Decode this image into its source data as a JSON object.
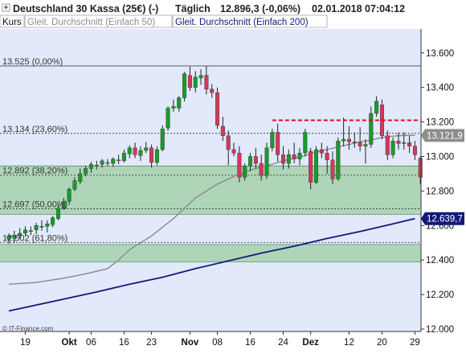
{
  "header": {
    "instrument": "Deutschland 30 Kassa (25€) (-)",
    "interval": "Täglich",
    "quote": "12.896,3 (-0,06%)",
    "datetime": "02.01.2018 07:04:12"
  },
  "legend": {
    "kurs": "Kurs",
    "sma50": "Gleit. Durchschnitt (Einfach 50)",
    "sma200": "Gleit. Durchschnitt (Einfach 200)"
  },
  "watermark": "© IT-Finance.com",
  "colors": {
    "background": "#e1e9fb",
    "header_background": "#ffffff",
    "candle_up": "#1a9a2a",
    "candle_down": "#d2385a",
    "sma50": "#8e8e8e",
    "sma200": "#141a7a",
    "fib_band": "#a6d1ac",
    "resistance": "#dd1111",
    "label_sma50": "#8e8e8e",
    "label_sma200": "#141a7a"
  },
  "chart_data": {
    "type": "candlestick",
    "title": "Deutschland 30 Kassa (25€) (-)",
    "ylim": [
      12000,
      13700
    ],
    "y_ticks": [
      12000,
      12200,
      12400,
      12600,
      12800,
      13000,
      13200,
      13400,
      13600
    ],
    "y_tick_labels": [
      "12.000",
      "12.200",
      "12.400",
      "12.600",
      "12.800",
      "13.000",
      "13.200",
      "13.400",
      "13.600"
    ],
    "x_ticks": [
      {
        "label": "19",
        "index": 3,
        "bold": false
      },
      {
        "label": "Okt",
        "index": 11,
        "bold": true
      },
      {
        "label": "06",
        "index": 15,
        "bold": false
      },
      {
        "label": "16",
        "index": 21,
        "bold": false
      },
      {
        "label": "23",
        "index": 26,
        "bold": false
      },
      {
        "label": "Nov",
        "index": 33,
        "bold": true
      },
      {
        "label": "08",
        "index": 38,
        "bold": false
      },
      {
        "label": "16",
        "index": 44,
        "bold": false
      },
      {
        "label": "24",
        "index": 50,
        "bold": false
      },
      {
        "label": "Dez",
        "index": 55,
        "bold": true
      },
      {
        "label": "12",
        "index": 62,
        "bold": false
      },
      {
        "label": "20",
        "index": 68,
        "bold": false
      },
      {
        "label": "29",
        "index": 74,
        "bold": false
      }
    ],
    "fibonacci": [
      {
        "label": "13.525 (0,00%)",
        "value": 13525
      },
      {
        "label": "13.134 (23,60%)",
        "value": 13134
      },
      {
        "label": "12.892 (38,20%)",
        "value": 12892
      },
      {
        "label": "12.697 (50,00%)",
        "value": 12697
      },
      {
        "label": "12.502 (61,80%)",
        "value": 12502
      }
    ],
    "zones": [
      {
        "from": 12665,
        "to": 12945
      },
      {
        "from": 12390,
        "to": 12490
      }
    ],
    "resistance": {
      "value": 13210,
      "from_index": 48,
      "to_index": 75
    },
    "last_values": {
      "sma50": "13.121,9",
      "sma200": "12.639,7"
    },
    "series": [
      {
        "name": "Kurs",
        "ohlc": [
          [
            12520,
            12555,
            12495,
            12540
          ],
          [
            12525,
            12570,
            12500,
            12545
          ],
          [
            12540,
            12585,
            12525,
            12555
          ],
          [
            12555,
            12595,
            12540,
            12575
          ],
          [
            12565,
            12595,
            12545,
            12570
          ],
          [
            12575,
            12615,
            12550,
            12600
          ],
          [
            12590,
            12630,
            12570,
            12595
          ],
          [
            12595,
            12630,
            12560,
            12610
          ],
          [
            12605,
            12655,
            12590,
            12645
          ],
          [
            12640,
            12720,
            12630,
            12700
          ],
          [
            12700,
            12760,
            12690,
            12740
          ],
          [
            12740,
            12820,
            12720,
            12810
          ],
          [
            12810,
            12880,
            12800,
            12860
          ],
          [
            12855,
            12930,
            12840,
            12900
          ],
          [
            12900,
            12945,
            12885,
            12930
          ],
          [
            12930,
            12970,
            12905,
            12955
          ],
          [
            12945,
            12975,
            12925,
            12950
          ],
          [
            12955,
            12985,
            12935,
            12975
          ],
          [
            12965,
            12985,
            12945,
            12960
          ],
          [
            12960,
            12995,
            12940,
            12985
          ],
          [
            12980,
            13010,
            12955,
            12975
          ],
          [
            12975,
            13040,
            12965,
            13020
          ],
          [
            13015,
            13065,
            12990,
            13050
          ],
          [
            13050,
            13080,
            12990,
            13010
          ],
          [
            13005,
            13060,
            12975,
            13035
          ],
          [
            13035,
            13085,
            13020,
            13050
          ],
          [
            13050,
            13070,
            12935,
            12965
          ],
          [
            12965,
            13060,
            12950,
            13040
          ],
          [
            13040,
            13180,
            13030,
            13160
          ],
          [
            13165,
            13290,
            13150,
            13280
          ],
          [
            13280,
            13330,
            13260,
            13290
          ],
          [
            13280,
            13350,
            13260,
            13340
          ],
          [
            13340,
            13490,
            13320,
            13480
          ],
          [
            13470,
            13520,
            13380,
            13400
          ],
          [
            13400,
            13495,
            13370,
            13460
          ],
          [
            13455,
            13505,
            13415,
            13470
          ],
          [
            13470,
            13525,
            13360,
            13390
          ],
          [
            13390,
            13420,
            13340,
            13370
          ],
          [
            13370,
            13400,
            13160,
            13180
          ],
          [
            13175,
            13230,
            13090,
            13120
          ],
          [
            13120,
            13150,
            12950,
            13040
          ],
          [
            13040,
            13080,
            13000,
            13020
          ],
          [
            13020,
            13060,
            12850,
            12880
          ],
          [
            12880,
            12960,
            12860,
            12945
          ],
          [
            12945,
            13020,
            12915,
            13000
          ],
          [
            13000,
            13050,
            12930,
            12960
          ],
          [
            12960,
            13010,
            12860,
            12890
          ],
          [
            12890,
            13080,
            12870,
            13050
          ],
          [
            13050,
            13160,
            13030,
            13140
          ],
          [
            13140,
            13190,
            12970,
            13010
          ],
          [
            13010,
            13060,
            12925,
            12960
          ],
          [
            12960,
            13040,
            12930,
            13010
          ],
          [
            13010,
            13080,
            12960,
            12985
          ],
          [
            12985,
            13050,
            12950,
            13020
          ],
          [
            13020,
            13160,
            13000,
            13140
          ],
          [
            13030,
            13050,
            12810,
            12850
          ],
          [
            12850,
            13060,
            12840,
            13040
          ],
          [
            13040,
            13080,
            12990,
            13020
          ],
          [
            13020,
            13060,
            12900,
            12980
          ],
          [
            12980,
            13030,
            12840,
            12870
          ],
          [
            12870,
            13110,
            12860,
            13090
          ],
          [
            13090,
            13225,
            13060,
            13100
          ],
          [
            13100,
            13175,
            13040,
            13085
          ],
          [
            13085,
            13140,
            13050,
            13080
          ],
          [
            13080,
            13170,
            13030,
            13060
          ],
          [
            13060,
            13100,
            12960,
            13070
          ],
          [
            13070,
            13290,
            13050,
            13250
          ],
          [
            13250,
            13350,
            13230,
            13320
          ],
          [
            13300,
            13330,
            13100,
            13120
          ],
          [
            13120,
            13150,
            12980,
            13010
          ],
          [
            13010,
            13110,
            12990,
            13090
          ],
          [
            13090,
            13140,
            13040,
            13075
          ],
          [
            13075,
            13140,
            13040,
            13080
          ],
          [
            13080,
            13120,
            13020,
            13060
          ],
          [
            13060,
            13090,
            12980,
            13010
          ],
          [
            12990,
            13000,
            12840,
            12880
          ]
        ]
      },
      {
        "name": "Gleit. Durchschnitt (Einfach 50)",
        "values": [
          [
            0,
            12260
          ],
          [
            5,
            12270
          ],
          [
            10,
            12295
          ],
          [
            14,
            12320
          ],
          [
            18,
            12350
          ],
          [
            20,
            12400
          ],
          [
            22,
            12460
          ],
          [
            24,
            12500
          ],
          [
            26,
            12540
          ],
          [
            28,
            12590
          ],
          [
            30,
            12640
          ],
          [
            32,
            12700
          ],
          [
            34,
            12760
          ],
          [
            36,
            12800
          ],
          [
            38,
            12840
          ],
          [
            40,
            12870
          ],
          [
            42,
            12900
          ],
          [
            44,
            12920
          ],
          [
            46,
            12940
          ],
          [
            48,
            12955
          ],
          [
            50,
            12975
          ],
          [
            52,
            12990
          ],
          [
            54,
            13005
          ],
          [
            56,
            13025
          ],
          [
            58,
            13040
          ],
          [
            60,
            13055
          ],
          [
            62,
            13070
          ],
          [
            64,
            13085
          ],
          [
            66,
            13095
          ],
          [
            68,
            13110
          ],
          [
            70,
            13118
          ],
          [
            72,
            13122
          ],
          [
            74,
            13122
          ]
        ]
      },
      {
        "name": "Gleit. Durchschnitt (Einfach 200)",
        "values": [
          [
            0,
            12105
          ],
          [
            8,
            12160
          ],
          [
            16,
            12215
          ],
          [
            22,
            12260
          ],
          [
            28,
            12300
          ],
          [
            34,
            12350
          ],
          [
            40,
            12395
          ],
          [
            46,
            12440
          ],
          [
            52,
            12480
          ],
          [
            58,
            12525
          ],
          [
            64,
            12565
          ],
          [
            70,
            12610
          ],
          [
            74,
            12640
          ]
        ]
      }
    ]
  }
}
